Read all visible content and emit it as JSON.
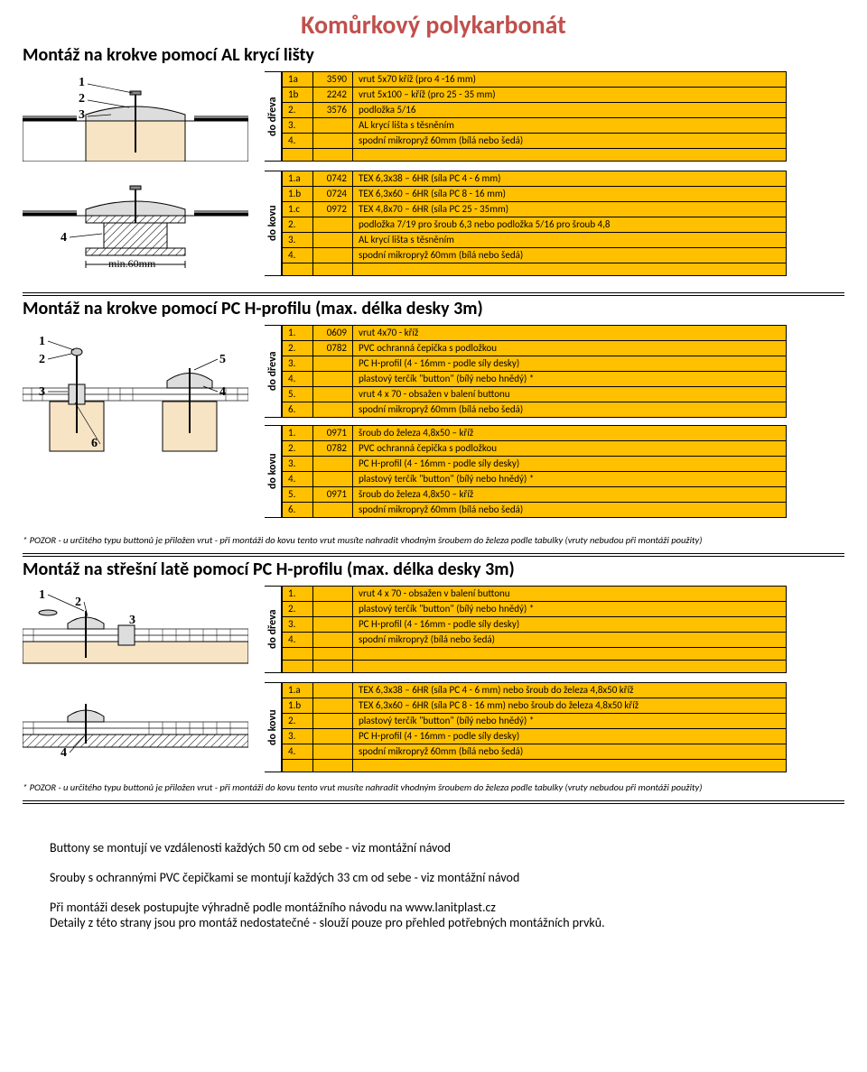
{
  "title": "Komůrkový polykarbonát",
  "section1": {
    "title": "Montáž na krokve pomocí AL krycí lišty",
    "dreva_label": "do dřeva",
    "kovu_label": "do kovu",
    "dreva": [
      {
        "n": "1a",
        "c": "3590",
        "d": "vrut 5x70 kříž (pro 4 -16 mm)"
      },
      {
        "n": "1b",
        "c": "2242",
        "d": "vrut 5x100 – kříž (pro 25 - 35 mm)"
      },
      {
        "n": "2.",
        "c": "3576",
        "d": "podložka 5/16"
      },
      {
        "n": "3.",
        "c": "",
        "d": "AL krycí lišta s těsněním"
      },
      {
        "n": "4.",
        "c": "",
        "d": "spodní mikropryž 60mm (bílá nebo šedá)"
      }
    ],
    "kovu": [
      {
        "n": "1.a",
        "c": "0742",
        "d": "TEX 6,3x38 – 6HR (síla PC 4 - 6 mm)"
      },
      {
        "n": "1.b",
        "c": "0724",
        "d": "TEX 6,3x60 – 6HR (síla PC 8 - 16 mm)"
      },
      {
        "n": "1.c",
        "c": "0972",
        "d": "TEX 4,8x70 – 6HR (síla PC 25 - 35mm)"
      },
      {
        "n": "2.",
        "c": "",
        "d": "podložka 7/19 pro šroub 6,3 nebo podložka 5/16 pro šroub 4,8"
      },
      {
        "n": "3.",
        "c": "",
        "d": "AL krycí lišta s těsněním"
      },
      {
        "n": "4.",
        "c": "",
        "d": "spodní mikropryž 60mm (bílá nebo šedá)"
      }
    ],
    "min60": "min.60mm"
  },
  "section2": {
    "title": "Montáž na krokve pomocí PC H-profilu (max. délka desky 3m)",
    "dreva_label": "do dřeva",
    "kovu_label": "do kovu",
    "dreva": [
      {
        "n": "1.",
        "c": "0609",
        "d": "vrut 4x70 - kříž"
      },
      {
        "n": "2.",
        "c": "0782",
        "d": "PVC ochranná čepička s podložkou"
      },
      {
        "n": "3.",
        "c": "",
        "d": "PC H-profil (4 - 16mm - podle síly desky)"
      },
      {
        "n": "4.",
        "c": "",
        "d": "plastový terčík \"button\" (bílý nebo hnědý) *"
      },
      {
        "n": "5.",
        "c": "",
        "d": "vrut 4 x 70 - obsažen v balení buttonu"
      },
      {
        "n": "6.",
        "c": "",
        "d": "spodní mikropryž 60mm (bílá nebo šedá)"
      }
    ],
    "kovu": [
      {
        "n": "1.",
        "c": "0971",
        "d": "šroub do železa 4,8x50 – kříž"
      },
      {
        "n": "2.",
        "c": "0782",
        "d": "PVC ochranná čepička s podložkou"
      },
      {
        "n": "3.",
        "c": "",
        "d": "PC H-profil (4 - 16mm - podle síly desky)"
      },
      {
        "n": "4.",
        "c": "",
        "d": "plastový terčík \"button\" (bílý nebo hnědý) *"
      },
      {
        "n": "5.",
        "c": "0971",
        "d": "šroub do železa 4,8x50 – kříž"
      },
      {
        "n": "6.",
        "c": "",
        "d": "spodní mikropryž 60mm (bílá nebo šedá)"
      }
    ]
  },
  "note_pozor": "* POZOR - u určitého typu buttonů je přiložen vrut -  při montáži  do kovu  tento vrut musíte nahradit vhodným šroubem do železa podle tabulky (vruty nebudou při montáži použity)",
  "section3": {
    "title": "Montáž na střešní latě pomocí PC H-profilu (max. délka desky 3m)",
    "dreva_label": "do dřeva",
    "kovu_label": "do kovu",
    "dreva": [
      {
        "n": "1.",
        "c": "",
        "d": "vrut 4 x 70 - obsažen v balení buttonu"
      },
      {
        "n": "2.",
        "c": "",
        "d": "plastový terčík \"button\" (bílý nebo hnědý) *"
      },
      {
        "n": "3.",
        "c": "",
        "d": "PC H-profil (4 - 16mm - podle síly desky)"
      },
      {
        "n": "4.",
        "c": "",
        "d": "spodní mikropryž (bílá nebo šedá)"
      }
    ],
    "kovu": [
      {
        "n": "1.a",
        "c": "",
        "d": "TEX 6,3x38 – 6HR (síla PC 4 - 6 mm) nebo šroub do železa 4,8x50 kříž"
      },
      {
        "n": "1.b",
        "c": "",
        "d": "TEX 6,3x60 – 6HR (síla PC 8 - 16 mm) nebo šroub do železa 4,8x50 kříž"
      },
      {
        "n": "2.",
        "c": "",
        "d": "plastový terčík \"button\" (bílý nebo hnědý) *"
      },
      {
        "n": "3.",
        "c": "",
        "d": "PC H-profil (4 - 16mm - podle síly desky)"
      },
      {
        "n": "4.",
        "c": "",
        "d": "spodní mikropryž 60mm (bílá nebo šedá)"
      }
    ]
  },
  "notes": {
    "n1": "Buttony se montují ve vzdálenosti každých 50 cm od sebe - viz montážní návod",
    "n2": "Srouby s ochrannými PVC čepičkami se montují každých 33 cm od sebe - viz montážní návod",
    "n3": "Při montáži desek postupujte výhradně podle montážního návodu na www.lanitplast.cz",
    "n4": "Detaily z této strany jsou pro montáž nedostatečné - slouží pouze pro přehled potřebných montážních prvků."
  }
}
